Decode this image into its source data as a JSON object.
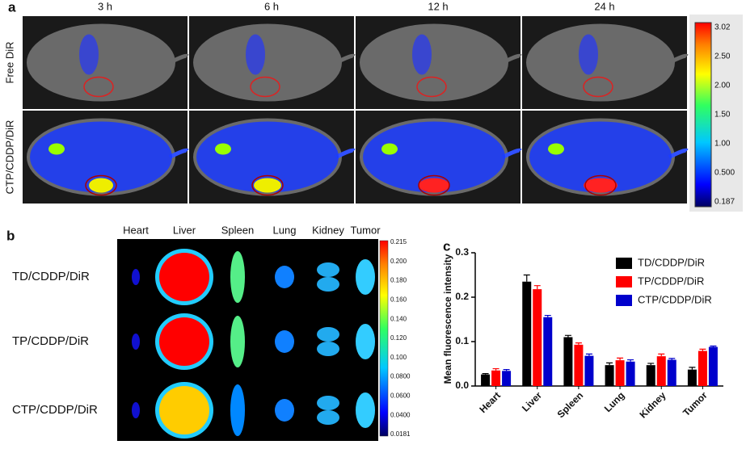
{
  "panel_a": {
    "label": "a",
    "columns": [
      "3 h",
      "6 h",
      "12 h",
      "24 h"
    ],
    "rows": [
      "Free DiR",
      "CTP/CDDP/DiR"
    ],
    "colorbar_labels": [
      "3.02",
      "2.50",
      "2.00",
      "1.50",
      "1.00",
      "0.500",
      "0.187"
    ]
  },
  "panel_b": {
    "label": "b",
    "columns": [
      "Heart",
      "Liver",
      "Spleen",
      "Lung",
      "Kidney",
      "Tumor"
    ],
    "rows": [
      "TD/CDDP/DiR",
      "TP/CDDP/DiR",
      "CTP/CDDP/DiR"
    ],
    "colorbar_labels": [
      "0.215",
      "0.200",
      "0.180",
      "0.160",
      "0.140",
      "0.120",
      "0.100",
      "0.0800",
      "0.0600",
      "0.0400",
      "0.0181"
    ]
  },
  "chart_data": {
    "type": "bar",
    "label": "c",
    "y_label": "Mean fluorescence intensity",
    "categories": [
      "Heart",
      "Liver",
      "Spleen",
      "Lung",
      "Kidney",
      "Tumor"
    ],
    "series": [
      {
        "name": "TD/CDDP/DiR",
        "color": "#000000",
        "values": [
          0.026,
          0.235,
          0.11,
          0.047,
          0.047,
          0.037
        ],
        "errors": [
          0.002,
          0.015,
          0.004,
          0.005,
          0.004,
          0.005
        ]
      },
      {
        "name": "TP/CDDP/DiR",
        "color": "#ff0000",
        "values": [
          0.035,
          0.218,
          0.093,
          0.058,
          0.067,
          0.079
        ],
        "errors": [
          0.004,
          0.008,
          0.004,
          0.005,
          0.005,
          0.004
        ]
      },
      {
        "name": "CTP/CDDP/DiR",
        "color": "#0000cc",
        "values": [
          0.034,
          0.155,
          0.068,
          0.055,
          0.059,
          0.088
        ],
        "errors": [
          0.003,
          0.004,
          0.004,
          0.004,
          0.003,
          0.002
        ]
      }
    ],
    "ylim": [
      0,
      0.3
    ],
    "yticks": [
      {
        "value": 0,
        "label": "0.0"
      },
      {
        "value": 0.1,
        "label": "0.1"
      },
      {
        "value": 0.2,
        "label": "0.2"
      },
      {
        "value": 0.3,
        "label": "0.3"
      }
    ]
  }
}
